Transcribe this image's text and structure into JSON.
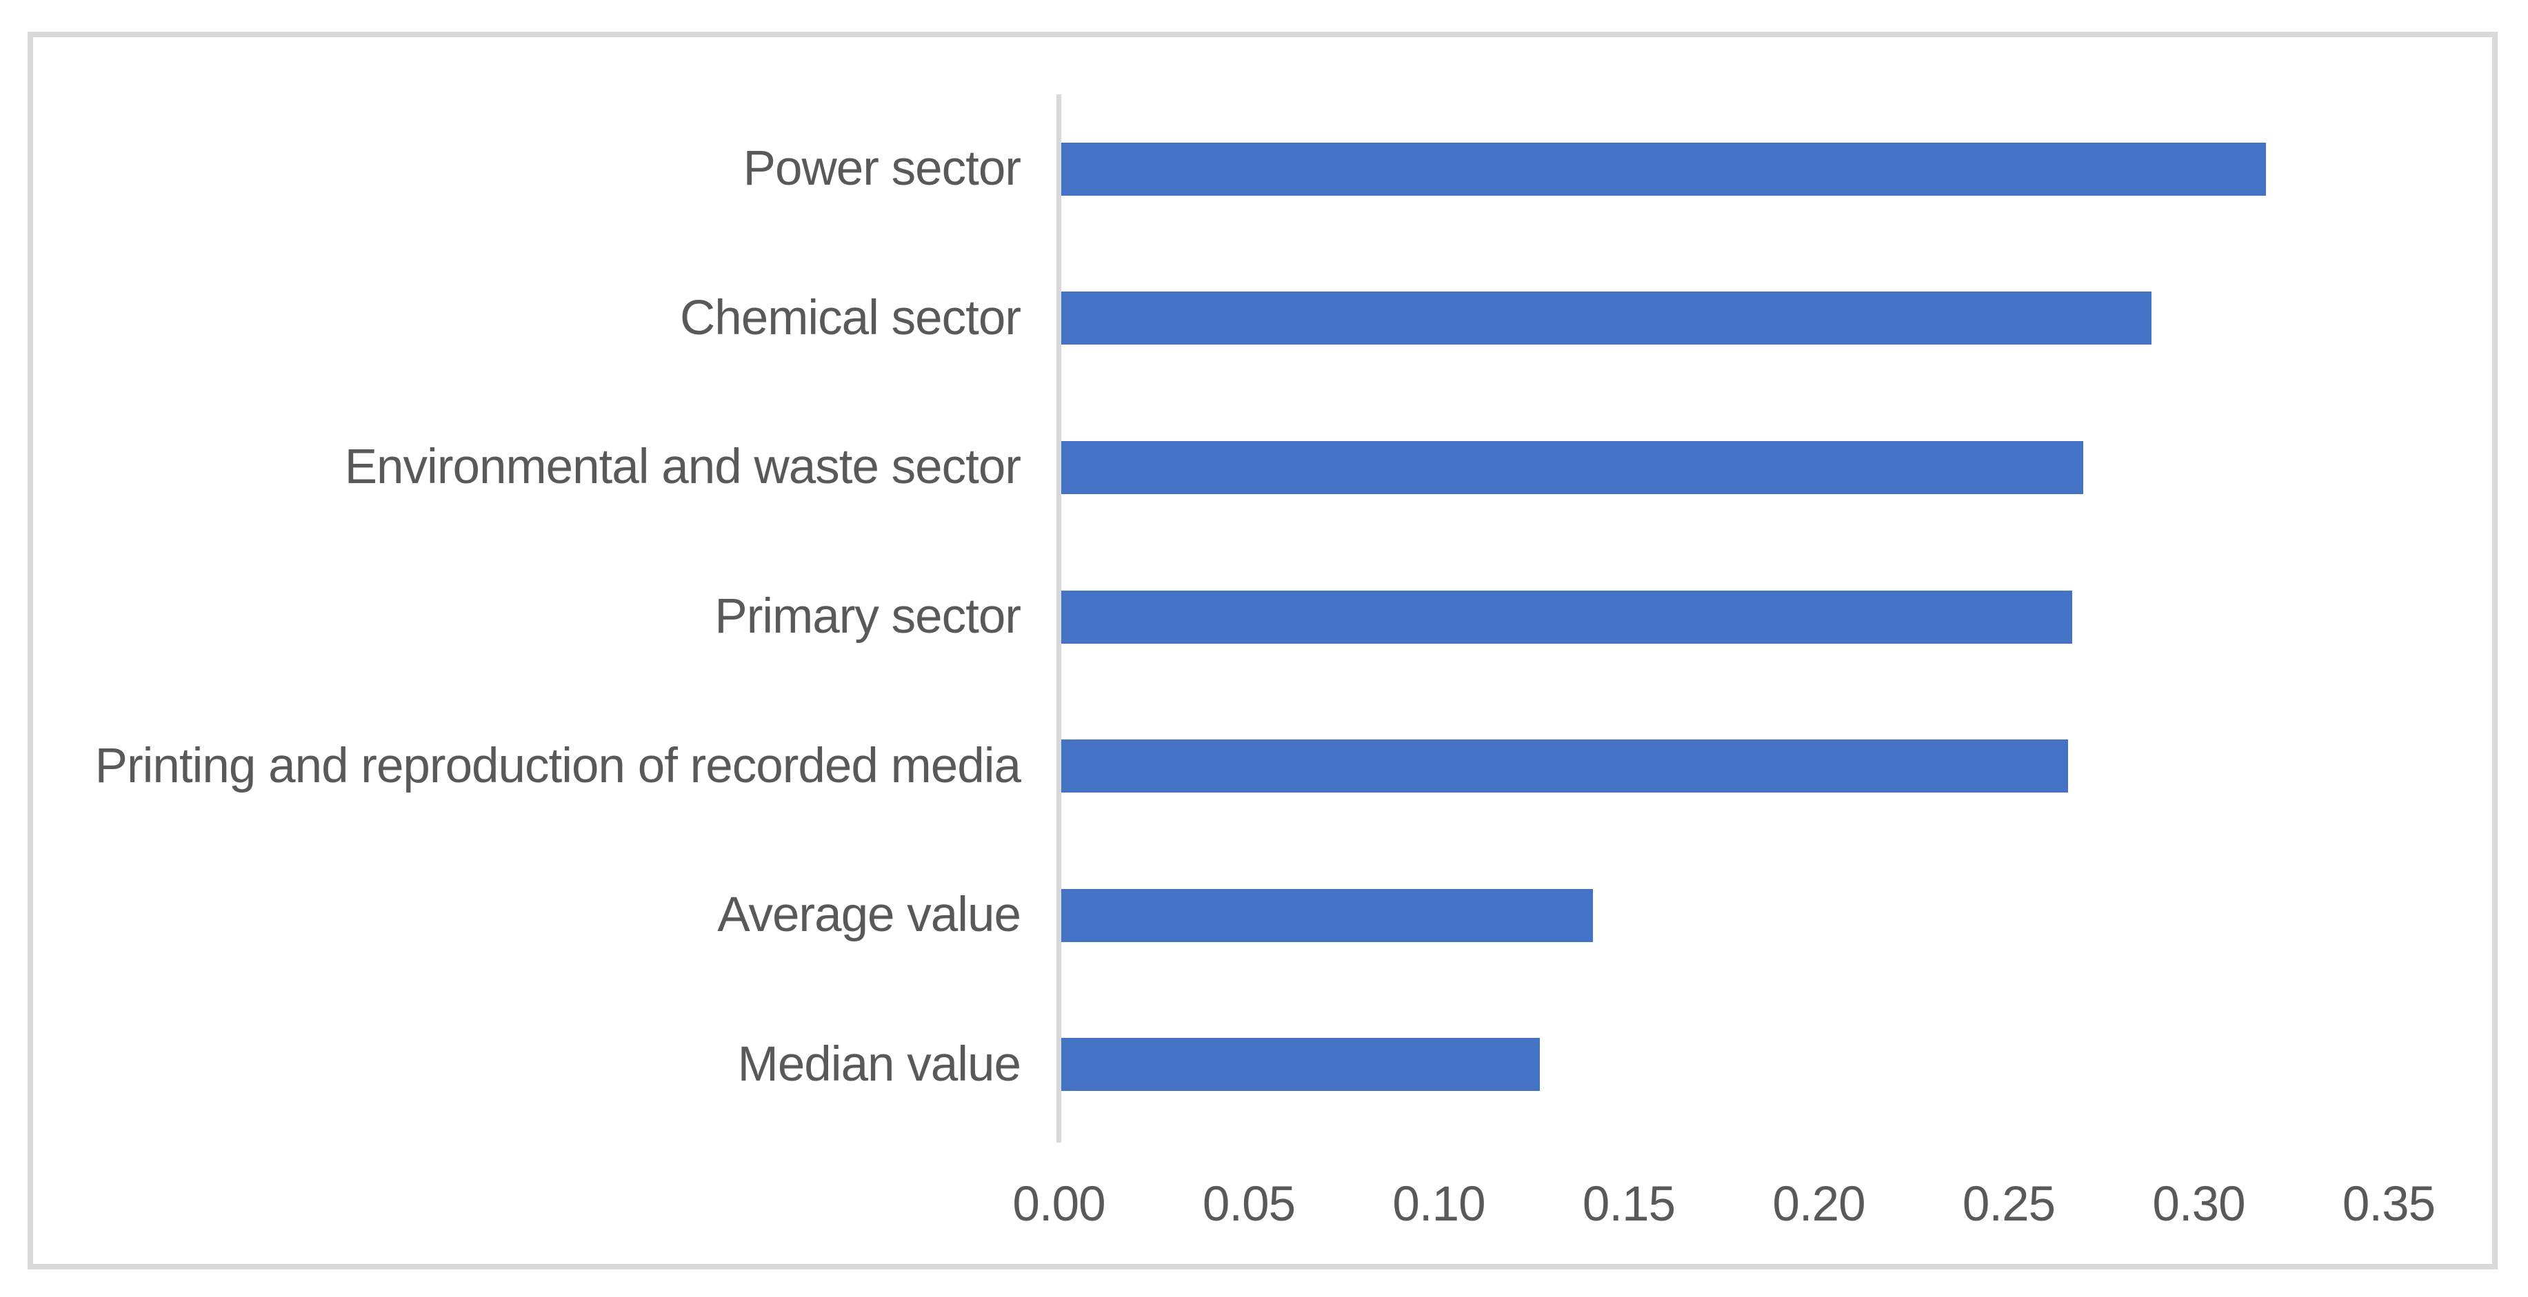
{
  "chart_data": {
    "type": "bar",
    "orientation": "horizontal",
    "title": "",
    "xlabel": "",
    "ylabel": "",
    "categories": [
      "Power sector",
      "Chemical sector",
      "Environmental and waste sector",
      "Primary sector",
      "Printing and reproduction of recorded media",
      "Average value",
      "Median value"
    ],
    "values": [
      0.317,
      0.287,
      0.269,
      0.266,
      0.265,
      0.14,
      0.126
    ],
    "x_ticks": [
      0.0,
      0.05,
      0.1,
      0.15,
      0.2,
      0.25,
      0.3,
      0.35
    ],
    "x_tick_labels": [
      "0.00",
      "0.05",
      "0.10",
      "0.15",
      "0.20",
      "0.25",
      "0.30",
      "0.35"
    ],
    "xlim": [
      0,
      0.35
    ],
    "grid": false,
    "legend": null,
    "bar_color": "#4472C4",
    "text_color": "#595959",
    "axis_color": "#D9D9D9",
    "background_color": "#FFFFFF"
  }
}
